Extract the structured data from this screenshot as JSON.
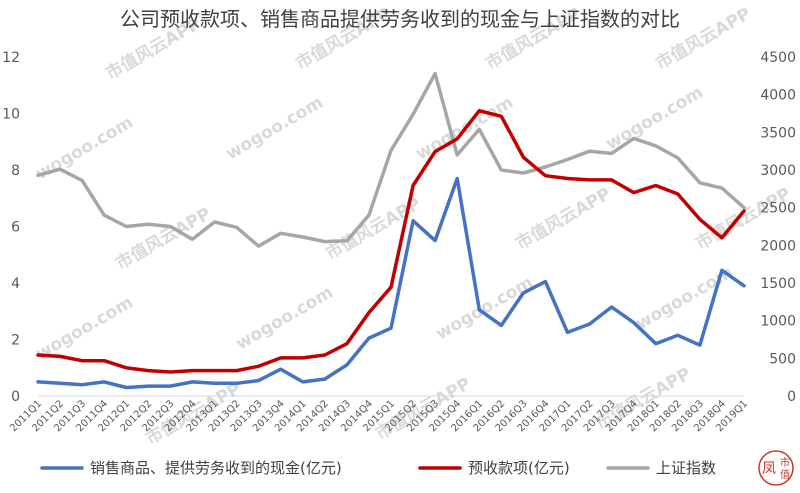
{
  "chart_data": {
    "type": "line",
    "title": "公司预收款项、销售商品提供劳务收到的现金与上证指数的对比",
    "categories": [
      "2011Q1",
      "2011Q2",
      "2011Q3",
      "2011Q4",
      "2012Q1",
      "2012Q2",
      "2012Q3",
      "2012Q4",
      "2013Q1",
      "2013Q2",
      "2013Q3",
      "2013Q4",
      "2014Q1",
      "2014Q2",
      "2014Q3",
      "2014Q4",
      "2015Q1",
      "2015Q2",
      "2015Q3",
      "2015Q4",
      "2016Q1",
      "2016Q2",
      "2016Q3",
      "2016Q4",
      "2017Q1",
      "2017Q2",
      "2017Q3",
      "2017Q4",
      "2018Q1",
      "2018Q2",
      "2018Q3",
      "2018Q4",
      "2019Q1"
    ],
    "y_left": {
      "ticks": [
        "0",
        "2",
        "4",
        "6",
        "8",
        "10",
        "12"
      ],
      "range": [
        0,
        12
      ]
    },
    "y_right": {
      "ticks": [
        "0",
        "500",
        "1000",
        "1500",
        "2000",
        "2500",
        "3000",
        "3500",
        "4000",
        "4500"
      ],
      "range": [
        0,
        4500
      ]
    },
    "series": [
      {
        "name": "销售商品、提供劳务收到的现金(亿元)",
        "axis": "left",
        "color": "#4472c4",
        "values": [
          0.5,
          0.45,
          0.4,
          0.5,
          0.3,
          0.35,
          0.35,
          0.5,
          0.45,
          0.45,
          0.55,
          0.95,
          0.5,
          0.6,
          1.1,
          2.05,
          2.4,
          6.2,
          5.5,
          7.7,
          3.05,
          2.5,
          3.65,
          4.05,
          2.25,
          2.55,
          3.15,
          2.6,
          1.85,
          2.15,
          1.8,
          4.45,
          3.9
        ]
      },
      {
        "name": "预收款项(亿元)",
        "axis": "left",
        "color": "#c00000",
        "values": [
          1.45,
          1.4,
          1.25,
          1.25,
          1.0,
          0.9,
          0.85,
          0.9,
          0.9,
          0.9,
          1.05,
          1.35,
          1.35,
          1.45,
          1.85,
          2.95,
          3.85,
          7.45,
          8.65,
          9.1,
          10.1,
          9.9,
          8.45,
          7.8,
          7.7,
          7.65,
          7.65,
          7.2,
          7.45,
          7.15,
          6.25,
          5.6,
          6.55
        ]
      },
      {
        "name": "上证指数",
        "axis": "right",
        "color": "#a6a6a6",
        "values": [
          2930,
          3010,
          2860,
          2400,
          2250,
          2280,
          2250,
          2080,
          2310,
          2240,
          1990,
          2160,
          2110,
          2050,
          2060,
          2400,
          3260,
          3740,
          4280,
          3200,
          3540,
          3000,
          2960,
          3040,
          3140,
          3250,
          3220,
          3420,
          3320,
          3160,
          2830,
          2760,
          2500
        ]
      }
    ],
    "legend_position": "bottom",
    "watermark": [
      "市值风云APP",
      "wogoo.com"
    ]
  }
}
